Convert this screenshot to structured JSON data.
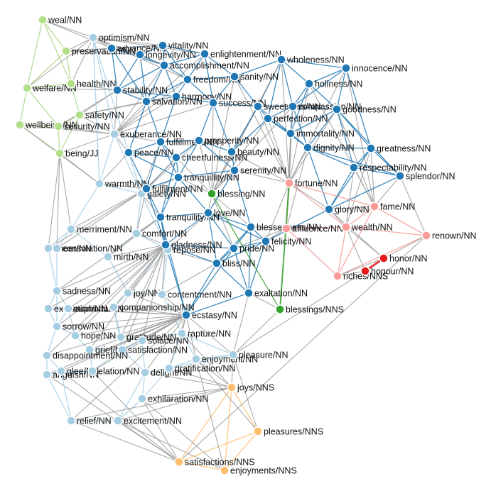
{
  "nodes": [
    "weal/NN",
    "preservation/NN",
    "welfare/NN",
    "health/NN",
    "safety/NN",
    "wellbeing/NN",
    "security/NN",
    "being/JJ",
    "optimism/NN",
    "exuberance/NN",
    "warmth/NN",
    "gaiety/NN",
    "merriment/NN",
    "comfort/NN",
    "mirth/NN",
    "cheer/NN",
    "consolation/NN",
    "repose/NN",
    "sadness/NN",
    "joy/NN",
    "contentment/NN",
    "exultation/NN",
    "euphoria/NN",
    "companionship/NN",
    "sorrow/NN",
    "hope/NN",
    "grief/NN",
    "gratitude/NN",
    "solace/NN",
    "rapture/NN",
    "satisfaction/NN",
    "disappointment/NN",
    "anguish/NN",
    "glee/NN",
    "elation/NN",
    "delight/NN",
    "gratification/NN",
    "enjoyment/NN",
    "pleasure/NN",
    "exhilaration/NN",
    "relief/NN",
    "excitement/NN",
    "advance/NN",
    "vitality/NN",
    "longevity/NN",
    "enlightenment/NN",
    "wholeness/NN",
    "accomplishment/NN",
    "innocence/NN",
    "holiness/NN",
    "stability/NN",
    "freedom/NN",
    "sanity/NN",
    "harmony/NN",
    "salvation/NN",
    "success/NN",
    "sweetness/NN",
    "compassion/NN",
    "goodness/NN",
    "perfection/NN",
    "immortality/NN",
    "peace/NN",
    "fulfillment/NN",
    "prosperity/NN",
    "cheerfulness/NN",
    "beauty/NN",
    "dignity/NN",
    "greatness/NN",
    "respectability/NN",
    "splendor/NN",
    "tranquillity/NN",
    "serenity/NN",
    "fulfilment/NN",
    "tranquility/NN",
    "love/NN",
    "blessedness/NN",
    "glory/NN",
    "felicity/NN",
    "gladness/NN",
    "pride/NN",
    "bliss/NN",
    "exaltation/NN",
    "ecstasy/NN",
    "blessing/NN",
    "blessings/NNS",
    "fortune/NN",
    "fame/NN",
    "affluence/NN",
    "wealth/NN",
    "renown/NN",
    "riches/NNS",
    "honor/NN",
    "honour/NN",
    "joys/NNS",
    "pleasures/NNS",
    "satisfactions/NNS",
    "enjoyments/NNS"
  ]
}
